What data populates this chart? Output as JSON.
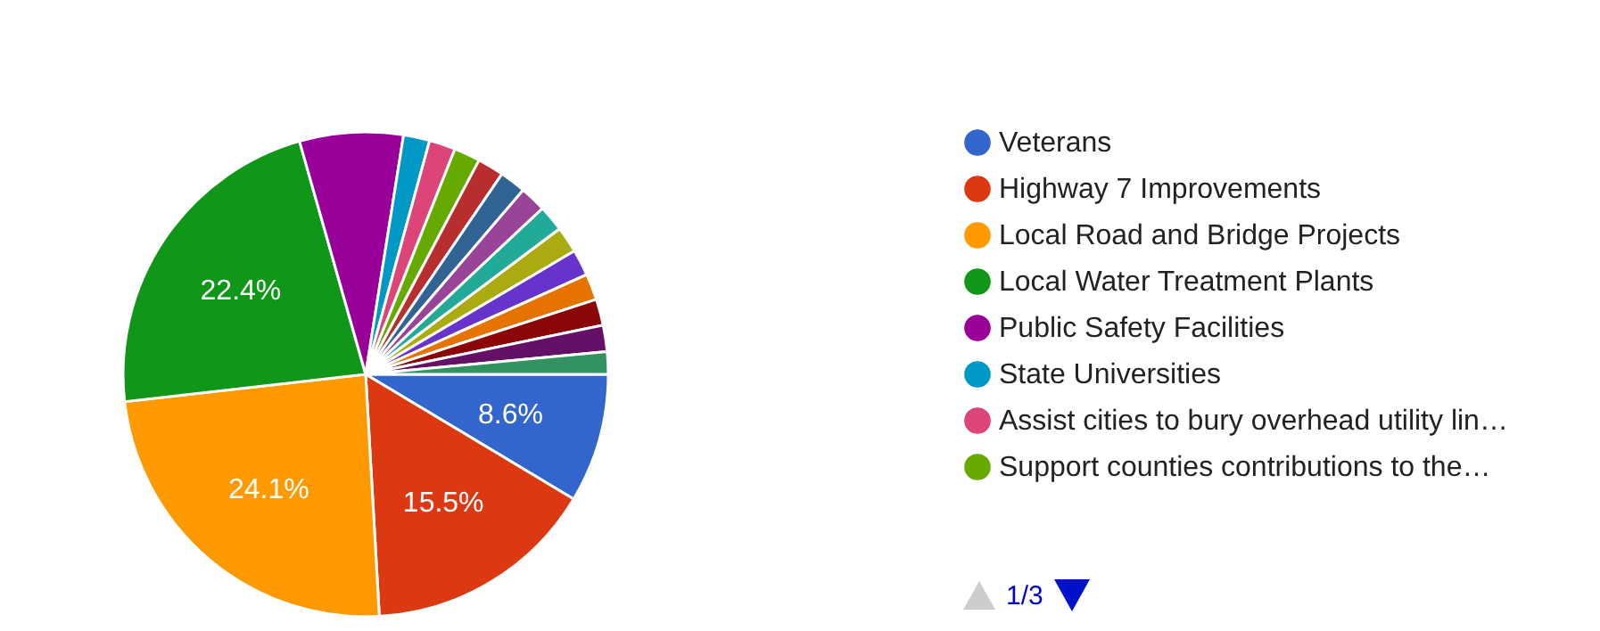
{
  "chart_data": {
    "type": "pie",
    "categories": [
      "Veterans",
      "Highway 7 Improvements",
      "Local Road and Bridge Projects",
      "Local Water Treatment Plants",
      "Public Safety Facilities",
      "State Universities",
      "Assist cities to bury overhead utility lin…",
      "Support counties contributions to the…",
      null,
      null,
      null,
      null,
      null,
      null,
      null,
      null,
      null,
      null
    ],
    "values": [
      8.6,
      15.5,
      24.1,
      22.4,
      6.9,
      1.75,
      1.75,
      1.75,
      1.75,
      1.75,
      1.75,
      1.75,
      1.75,
      1.75,
      1.75,
      1.75,
      1.75,
      1.5
    ],
    "value_labels": [
      "8.6%",
      "15.5%",
      "24.1%",
      "22.4%",
      null,
      null,
      null,
      null,
      null,
      null,
      null,
      null,
      null,
      null,
      null,
      null,
      null,
      null
    ],
    "colors": [
      "#3366cc",
      "#dc3912",
      "#ff9900",
      "#109618",
      "#990099",
      "#0099c6",
      "#dd4477",
      "#66aa00",
      "#b82e2e",
      "#316395",
      "#994499",
      "#22aa99",
      "#aaaa11",
      "#6633cc",
      "#e67300",
      "#8b0707",
      "#651067",
      "#329262"
    ],
    "legend": "right",
    "annotations": [
      "1/3"
    ]
  }
}
